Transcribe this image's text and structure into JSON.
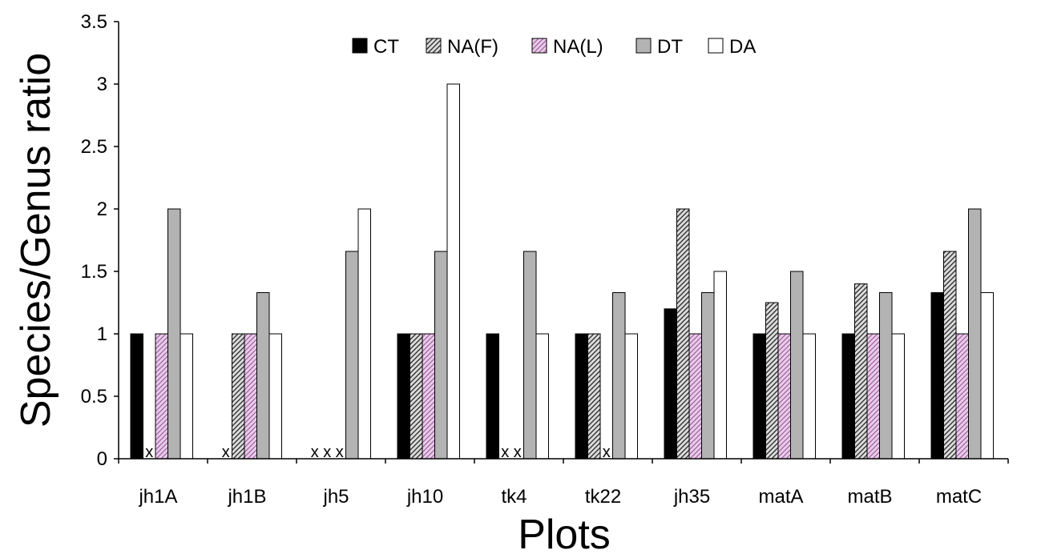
{
  "chart_data": {
    "type": "bar",
    "xlabel": "Plots",
    "ylabel": "Species/Genus ratio",
    "ylim": [
      0,
      3.5
    ],
    "yticks": [
      "0",
      "0.5",
      "1",
      "1.5",
      "2",
      "2.5",
      "3",
      "3.5"
    ],
    "ytick_values": [
      0,
      0.5,
      1,
      1.5,
      2,
      2.5,
      3,
      3.5
    ],
    "categories": [
      "jh1A",
      "jh1B",
      "jh5",
      "jh10",
      "tk4",
      "tk22",
      "jh35",
      "matA",
      "matB",
      "matC"
    ],
    "legend_position": "top-center",
    "grid": false,
    "missing_marker": "x",
    "series": [
      {
        "name": "CT",
        "color": "#000000",
        "pattern": "solid",
        "values": [
          1,
          null,
          null,
          1,
          1,
          1,
          1.2,
          1,
          1,
          1.33
        ]
      },
      {
        "name": "NA(F)",
        "color": "#b0b0b0",
        "pattern": "hatch",
        "values": [
          null,
          1,
          null,
          1,
          null,
          1,
          2,
          1.25,
          1.4,
          1.66
        ]
      },
      {
        "name": "NA(L)",
        "color": "#cc99cc",
        "pattern": "pink-hatch",
        "values": [
          1,
          1,
          null,
          1,
          null,
          null,
          1,
          1,
          1,
          1
        ]
      },
      {
        "name": "DT",
        "color": "#b3b3b3",
        "pattern": "solid",
        "values": [
          2,
          1.33,
          1.66,
          1.66,
          1.66,
          1.33,
          1.33,
          1.5,
          1.33,
          2
        ]
      },
      {
        "name": "DA",
        "color": "#ffffff",
        "pattern": "solid",
        "values": [
          1,
          1,
          2,
          3,
          1,
          1,
          1.5,
          1,
          1,
          1.33
        ]
      }
    ]
  }
}
